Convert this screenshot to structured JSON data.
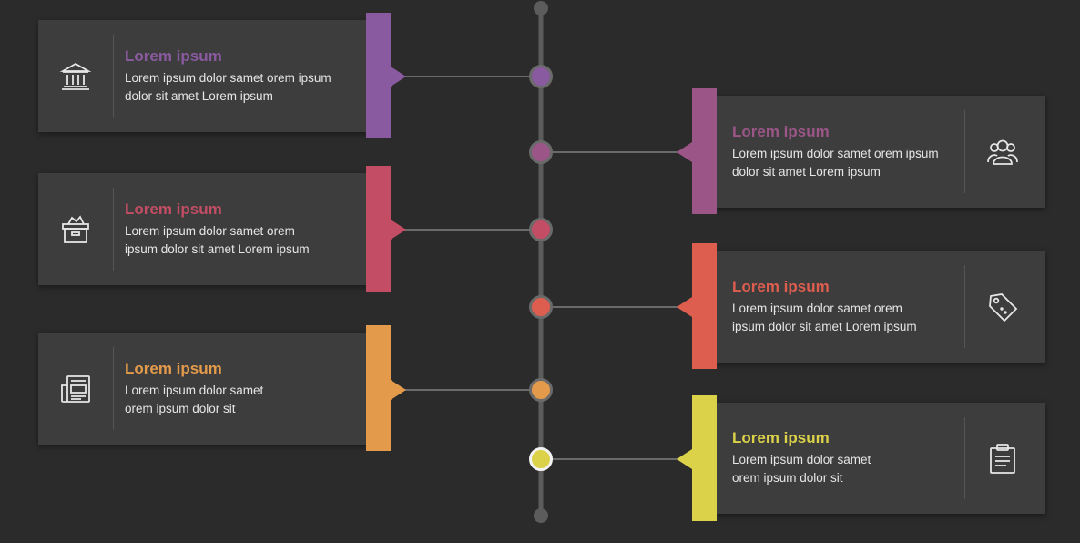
{
  "colors": {
    "purple": "#8a5aa0",
    "mauve": "#9b5687",
    "rose": "#c24d64",
    "coral": "#dd5e4f",
    "orange": "#e39a4b",
    "yellow": "#dcd24a"
  },
  "items": [
    {
      "side": "left",
      "color_key": "purple",
      "icon": "bank-icon",
      "title": "Lorem ipsum",
      "body_line1": "Lorem ipsum dolor samet orem ipsum",
      "body_line2": "dolor sit amet Lorem ipsum"
    },
    {
      "side": "right",
      "color_key": "mauve",
      "icon": "users-icon",
      "title": "Lorem ipsum",
      "body_line1": "Lorem ipsum dolor samet orem ipsum",
      "body_line2": "dolor sit amet Lorem ipsum"
    },
    {
      "side": "left",
      "color_key": "rose",
      "icon": "box-icon",
      "title": "Lorem ipsum",
      "body_line1": "Lorem ipsum dolor samet orem",
      "body_line2": "ipsum dolor sit amet Lorem ipsum"
    },
    {
      "side": "right",
      "color_key": "coral",
      "icon": "tag-icon",
      "title": "Lorem ipsum",
      "body_line1": "Lorem ipsum dolor samet orem",
      "body_line2": "ipsum dolor sit amet Lorem ipsum"
    },
    {
      "side": "left",
      "color_key": "orange",
      "icon": "newspaper-icon",
      "title": "Lorem ipsum",
      "body_line1": "Lorem ipsum dolor samet",
      "body_line2": "orem ipsum dolor sit"
    },
    {
      "side": "right",
      "color_key": "yellow",
      "icon": "clipboard-icon",
      "title": "Lorem ipsum",
      "body_line1": "Lorem ipsum dolor samet",
      "body_line2": "orem ipsum dolor sit"
    }
  ]
}
